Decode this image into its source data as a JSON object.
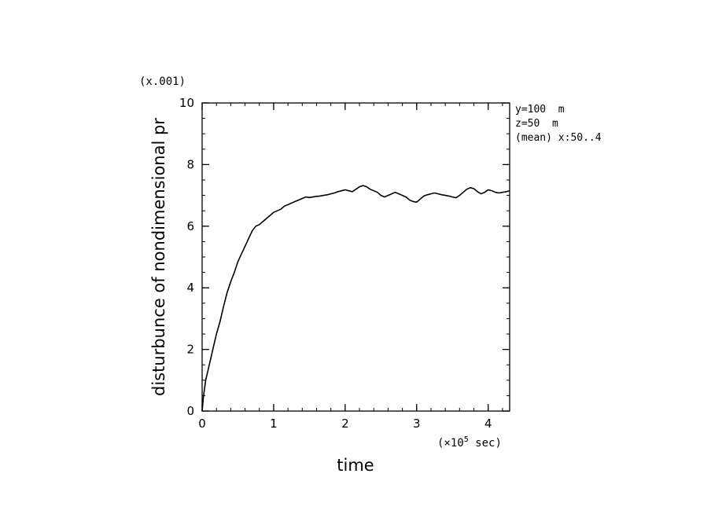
{
  "chart_data": {
    "type": "line",
    "xlabel": "time",
    "ylabel": "disturbunce of nondimensional pr",
    "x_scale_note_prefix": "(×10",
    "x_scale_note_exp": "5",
    "x_scale_note_suffix": " sec)",
    "y_scale_note": "(x.001)",
    "xlim": [
      0,
      4.3
    ],
    "ylim": [
      0,
      10
    ],
    "x_ticks": [
      0,
      1,
      2,
      3,
      4
    ],
    "y_ticks": [
      0,
      2,
      4,
      6,
      8,
      10
    ],
    "x_minor_step": 0.2,
    "y_minor_step": 0.5,
    "annotations": [
      "y=100  m",
      "z=50  m",
      "(mean) x:50..4"
    ],
    "grid": false,
    "line_color": "#000000",
    "series": [
      {
        "x": [
          0,
          0.02,
          0.05,
          0.08,
          0.12,
          0.16,
          0.2,
          0.25,
          0.3,
          0.35,
          0.4,
          0.45,
          0.5,
          0.55,
          0.6,
          0.65,
          0.7,
          0.75,
          0.8,
          0.85,
          0.9,
          0.95,
          1.0,
          1.05,
          1.1,
          1.15,
          1.2,
          1.25,
          1.3,
          1.35,
          1.4,
          1.45,
          1.5,
          1.55,
          1.6,
          1.65,
          1.7,
          1.75,
          1.8,
          1.85,
          1.9,
          1.95,
          2.0,
          2.05,
          2.1,
          2.15,
          2.2,
          2.25,
          2.3,
          2.35,
          2.4,
          2.45,
          2.5,
          2.55,
          2.6,
          2.65,
          2.7,
          2.75,
          2.8,
          2.85,
          2.9,
          2.95,
          3.0,
          3.05,
          3.1,
          3.15,
          3.2,
          3.25,
          3.3,
          3.35,
          3.4,
          3.45,
          3.5,
          3.55,
          3.6,
          3.65,
          3.7,
          3.75,
          3.8,
          3.85,
          3.9,
          3.95,
          4.0,
          4.05,
          4.1,
          4.15,
          4.2,
          4.25,
          4.3
        ],
        "values": [
          0.0,
          0.5,
          1.0,
          1.3,
          1.7,
          2.1,
          2.5,
          2.9,
          3.4,
          3.85,
          4.2,
          4.5,
          4.85,
          5.1,
          5.35,
          5.6,
          5.85,
          6.0,
          6.05,
          6.15,
          6.25,
          6.35,
          6.45,
          6.5,
          6.55,
          6.65,
          6.7,
          6.75,
          6.8,
          6.85,
          6.9,
          6.95,
          6.93,
          6.95,
          6.97,
          6.98,
          7.0,
          7.02,
          7.05,
          7.08,
          7.12,
          7.15,
          7.18,
          7.15,
          7.12,
          7.2,
          7.28,
          7.32,
          7.28,
          7.2,
          7.15,
          7.1,
          7.0,
          6.95,
          7.0,
          7.05,
          7.1,
          7.05,
          7.0,
          6.95,
          6.85,
          6.8,
          6.78,
          6.88,
          6.98,
          7.02,
          7.05,
          7.08,
          7.05,
          7.02,
          7.0,
          6.98,
          6.95,
          6.92,
          7.0,
          7.1,
          7.2,
          7.25,
          7.22,
          7.12,
          7.05,
          7.1,
          7.18,
          7.15,
          7.1,
          7.08,
          7.1,
          7.12,
          7.15
        ]
      }
    ]
  }
}
